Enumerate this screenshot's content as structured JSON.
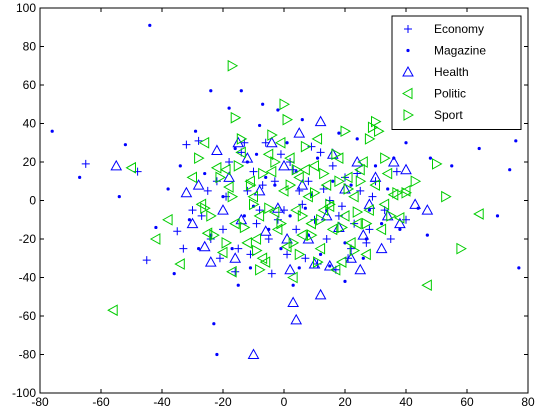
{
  "chart_data": {
    "type": "scatter",
    "title": "",
    "xlabel": "",
    "ylabel": "",
    "xlim": [
      -80,
      80
    ],
    "ylim": [
      -100,
      100
    ],
    "x_ticks": [
      -80,
      -60,
      -40,
      -20,
      0,
      20,
      40,
      60,
      80
    ],
    "y_ticks": [
      -100,
      -80,
      -60,
      -40,
      -20,
      0,
      20,
      40,
      60,
      80,
      100
    ],
    "x_tick_labels": [
      "-80",
      "-60",
      "-40",
      "-20",
      "0",
      "20",
      "40",
      "60",
      "80"
    ],
    "y_tick_labels": [
      "-100",
      "-80",
      "-60",
      "-40",
      "-20",
      "0",
      "20",
      "40",
      "60",
      "80",
      "100"
    ],
    "grid": false,
    "legend_position": "top-right",
    "series": [
      {
        "name": "Economy",
        "marker": "plus",
        "color": "#0000ff",
        "points": [
          [
            -65,
            19
          ],
          [
            -45,
            -31
          ],
          [
            -48,
            15
          ],
          [
            -32,
            29
          ],
          [
            -28,
            31
          ],
          [
            -35,
            -16
          ],
          [
            -30,
            -5
          ],
          [
            -25,
            5
          ],
          [
            -22,
            10
          ],
          [
            -20,
            -15
          ],
          [
            -18,
            20
          ],
          [
            -15,
            -25
          ],
          [
            -12,
            5
          ],
          [
            -10,
            15
          ],
          [
            -8,
            -5
          ],
          [
            -6,
            30
          ],
          [
            -5,
            -20
          ],
          [
            -3,
            10
          ],
          [
            -2,
            -10
          ],
          [
            0,
            -5
          ],
          [
            2,
            20
          ],
          [
            4,
            -15
          ],
          [
            5,
            5
          ],
          [
            7,
            -30
          ],
          [
            8,
            10
          ],
          [
            10,
            -10
          ],
          [
            12,
            25
          ],
          [
            14,
            -20
          ],
          [
            15,
            0
          ],
          [
            18,
            -8
          ],
          [
            20,
            12
          ],
          [
            22,
            -25
          ],
          [
            25,
            5
          ],
          [
            28,
            -15
          ],
          [
            30,
            10
          ],
          [
            33,
            -5
          ],
          [
            37,
            15
          ],
          [
            40,
            -10
          ],
          [
            -24,
            -20
          ],
          [
            -16,
            -37
          ],
          [
            -14,
            25
          ],
          [
            -9,
            -12
          ],
          [
            -4,
            -38
          ],
          [
            1,
            -28
          ],
          [
            3,
            16
          ],
          [
            6,
            -2
          ],
          [
            9,
            28
          ],
          [
            11,
            -33
          ],
          [
            13,
            6
          ],
          [
            16,
            18
          ],
          [
            19,
            -3
          ],
          [
            21,
            -30
          ],
          [
            24,
            14
          ],
          [
            27,
            -22
          ],
          [
            -27,
            -8
          ],
          [
            -19,
            2
          ],
          [
            -11,
            -28
          ],
          [
            -7,
            8
          ],
          [
            -1,
            24
          ],
          [
            17,
            -36
          ],
          [
            23,
            -12
          ],
          [
            -21,
            -30
          ],
          [
            -13,
            30
          ],
          [
            -33,
            -25
          ],
          [
            29,
            2
          ],
          [
            35,
            -20
          ]
        ]
      },
      {
        "name": "Magazine",
        "marker": "dot",
        "color": "#0000ff",
        "points": [
          [
            -44,
            91
          ],
          [
            -76,
            36
          ],
          [
            -67,
            12
          ],
          [
            -54,
            2
          ],
          [
            -52,
            29
          ],
          [
            -42,
            -14
          ],
          [
            -38,
            6
          ],
          [
            -34,
            18
          ],
          [
            -31,
            -10
          ],
          [
            -26,
            14
          ],
          [
            -24,
            57
          ],
          [
            -24,
            -18
          ],
          [
            -23,
            -64
          ],
          [
            -22,
            -80
          ],
          [
            -20,
            2
          ],
          [
            -18,
            48
          ],
          [
            -17,
            -25
          ],
          [
            -16,
            27
          ],
          [
            -14,
            57
          ],
          [
            -13,
            -8
          ],
          [
            -12,
            20
          ],
          [
            -11,
            -35
          ],
          [
            -10,
            -3
          ],
          [
            -8,
            39
          ],
          [
            -7,
            50
          ],
          [
            -6,
            12
          ],
          [
            -5,
            -15
          ],
          [
            -3,
            8
          ],
          [
            -1,
            -25
          ],
          [
            1,
            30
          ],
          [
            2,
            -8
          ],
          [
            4,
            15
          ],
          [
            5,
            -35
          ],
          [
            6,
            42
          ],
          [
            8,
            -18
          ],
          [
            9,
            3
          ],
          [
            11,
            22
          ],
          [
            12,
            -28
          ],
          [
            14,
            -5
          ],
          [
            16,
            10
          ],
          [
            18,
            35
          ],
          [
            20,
            -22
          ],
          [
            22,
            8
          ],
          [
            24,
            32
          ],
          [
            26,
            -30
          ],
          [
            28,
            -5
          ],
          [
            30,
            18
          ],
          [
            32,
            -12
          ],
          [
            34,
            6
          ],
          [
            38,
            -15
          ],
          [
            40,
            30
          ],
          [
            44,
            -4
          ],
          [
            48,
            22
          ],
          [
            55,
            18
          ],
          [
            64,
            27
          ],
          [
            70,
            -8
          ],
          [
            74,
            16
          ],
          [
            76,
            31
          ],
          [
            77,
            -35
          ],
          [
            -36,
            -38
          ],
          [
            -28,
            -25
          ],
          [
            -15,
            -44
          ],
          [
            3,
            -44
          ],
          [
            20,
            -42
          ],
          [
            27,
            -20
          ],
          [
            36,
            22
          ],
          [
            47,
            -18
          ],
          [
            -9,
            24
          ],
          [
            15,
            -34
          ],
          [
            -2,
            47
          ],
          [
            7,
            -4
          ],
          [
            -29,
            36
          ]
        ]
      },
      {
        "name": "Health",
        "marker": "triangle-up",
        "color": "#0000ff",
        "points": [
          [
            -55,
            18
          ],
          [
            -32,
            4
          ],
          [
            -30,
            -12
          ],
          [
            -26,
            -24
          ],
          [
            -22,
            26
          ],
          [
            -20,
            -5
          ],
          [
            -18,
            12
          ],
          [
            -16,
            -30
          ],
          [
            -14,
            -10
          ],
          [
            -12,
            22
          ],
          [
            -10,
            -80
          ],
          [
            -8,
            5
          ],
          [
            -6,
            -16
          ],
          [
            -4,
            30
          ],
          [
            -2,
            -4
          ],
          [
            0,
            18
          ],
          [
            2,
            -36
          ],
          [
            3,
            -53
          ],
          [
            4,
            -62
          ],
          [
            6,
            8
          ],
          [
            8,
            -20
          ],
          [
            10,
            -33
          ],
          [
            12,
            41
          ],
          [
            12,
            -49
          ],
          [
            14,
            -8
          ],
          [
            16,
            24
          ],
          [
            18,
            -14
          ],
          [
            20,
            6
          ],
          [
            22,
            -30
          ],
          [
            24,
            20
          ],
          [
            26,
            -18
          ],
          [
            28,
            -2
          ],
          [
            30,
            12
          ],
          [
            32,
            -25
          ],
          [
            34,
            -8
          ],
          [
            36,
            20
          ],
          [
            38,
            -12
          ],
          [
            40,
            16
          ],
          [
            43,
            -2
          ],
          [
            47,
            -5
          ],
          [
            -24,
            -32
          ],
          [
            -15,
            30
          ],
          [
            1,
            -20
          ],
          [
            5,
            35
          ],
          [
            15,
            -34
          ],
          [
            25,
            -36
          ],
          [
            -28,
            8
          ]
        ]
      },
      {
        "name": "Politic",
        "marker": "triangle-left",
        "color": "#00cc00",
        "points": [
          [
            -56,
            -57
          ],
          [
            -50,
            17
          ],
          [
            -42,
            -20
          ],
          [
            -38,
            -10
          ],
          [
            -34,
            -33
          ],
          [
            -30,
            12
          ],
          [
            -27,
            -2
          ],
          [
            -25,
            -17
          ],
          [
            -22,
            17
          ],
          [
            -20,
            -27
          ],
          [
            -18,
            7
          ],
          [
            -16,
            -12
          ],
          [
            -14,
            25
          ],
          [
            -12,
            -22
          ],
          [
            -10,
            2
          ],
          [
            -8,
            -8
          ],
          [
            -6,
            -32
          ],
          [
            -4,
            15
          ],
          [
            -2,
            -15
          ],
          [
            0,
            5
          ],
          [
            1,
            -24
          ],
          [
            2,
            22
          ],
          [
            4,
            -5
          ],
          [
            5,
            12
          ],
          [
            6,
            -18
          ],
          [
            8,
            2
          ],
          [
            9,
            -12
          ],
          [
            10,
            18
          ],
          [
            12,
            -25
          ],
          [
            14,
            8
          ],
          [
            15,
            -3
          ],
          [
            16,
            -15
          ],
          [
            18,
            22
          ],
          [
            20,
            -8
          ],
          [
            21,
            12
          ],
          [
            22,
            -22
          ],
          [
            23,
            2
          ],
          [
            24,
            -12
          ],
          [
            26,
            20
          ],
          [
            28,
            -5
          ],
          [
            30,
            8
          ],
          [
            32,
            -15
          ],
          [
            34,
            14
          ],
          [
            36,
            3
          ],
          [
            38,
            -9
          ],
          [
            40,
            5
          ],
          [
            47,
            -44
          ],
          [
            64,
            -7
          ],
          [
            -17,
            -37
          ],
          [
            -7,
            -30
          ],
          [
            -1,
            30
          ],
          [
            3,
            -40
          ],
          [
            11,
            32
          ],
          [
            17,
            -36
          ],
          [
            -26,
            30
          ],
          [
            -19,
            16
          ],
          [
            -9,
            -20
          ],
          [
            7,
            16
          ],
          [
            19,
            -32
          ],
          [
            13,
            -5
          ],
          [
            -3,
            -6
          ],
          [
            25,
            16
          ],
          [
            33,
            -2
          ],
          [
            -11,
            10
          ],
          [
            -5,
            24
          ],
          [
            27,
            -28
          ]
        ]
      },
      {
        "name": "Sport",
        "marker": "triangle-right",
        "color": "#00cc00",
        "points": [
          [
            -17,
            70
          ],
          [
            -16,
            43
          ],
          [
            -28,
            22
          ],
          [
            -24,
            -8
          ],
          [
            -21,
            12
          ],
          [
            -19,
            -22
          ],
          [
            -17,
            2
          ],
          [
            -15,
            18
          ],
          [
            -13,
            -14
          ],
          [
            -11,
            8
          ],
          [
            -9,
            -26
          ],
          [
            -7,
            14
          ],
          [
            -5,
            -4
          ],
          [
            -3,
            20
          ],
          [
            -1,
            -12
          ],
          [
            0,
            50
          ],
          [
            1,
            42
          ],
          [
            2,
            8
          ],
          [
            3,
            -22
          ],
          [
            4,
            16
          ],
          [
            6,
            -8
          ],
          [
            7,
            28
          ],
          [
            9,
            -18
          ],
          [
            10,
            4
          ],
          [
            11,
            -32
          ],
          [
            13,
            14
          ],
          [
            15,
            -2
          ],
          [
            17,
            24
          ],
          [
            19,
            -14
          ],
          [
            20,
            36
          ],
          [
            21,
            6
          ],
          [
            23,
            -26
          ],
          [
            25,
            10
          ],
          [
            27,
            -12
          ],
          [
            28,
            32
          ],
          [
            29,
            38
          ],
          [
            30,
            41
          ],
          [
            31,
            36
          ],
          [
            33,
            22
          ],
          [
            35,
            -8
          ],
          [
            37,
            4
          ],
          [
            40,
            4
          ],
          [
            43,
            10
          ],
          [
            50,
            19
          ],
          [
            53,
            2
          ],
          [
            58,
            -25
          ],
          [
            -26,
            -4
          ],
          [
            -23,
            -18
          ],
          [
            -8,
            -36
          ],
          [
            5,
            -28
          ],
          [
            18,
            10
          ],
          [
            24,
            -6
          ],
          [
            -14,
            32
          ],
          [
            -4,
            34
          ],
          [
            12,
            -10
          ],
          [
            -10,
            -2
          ]
        ]
      }
    ]
  }
}
